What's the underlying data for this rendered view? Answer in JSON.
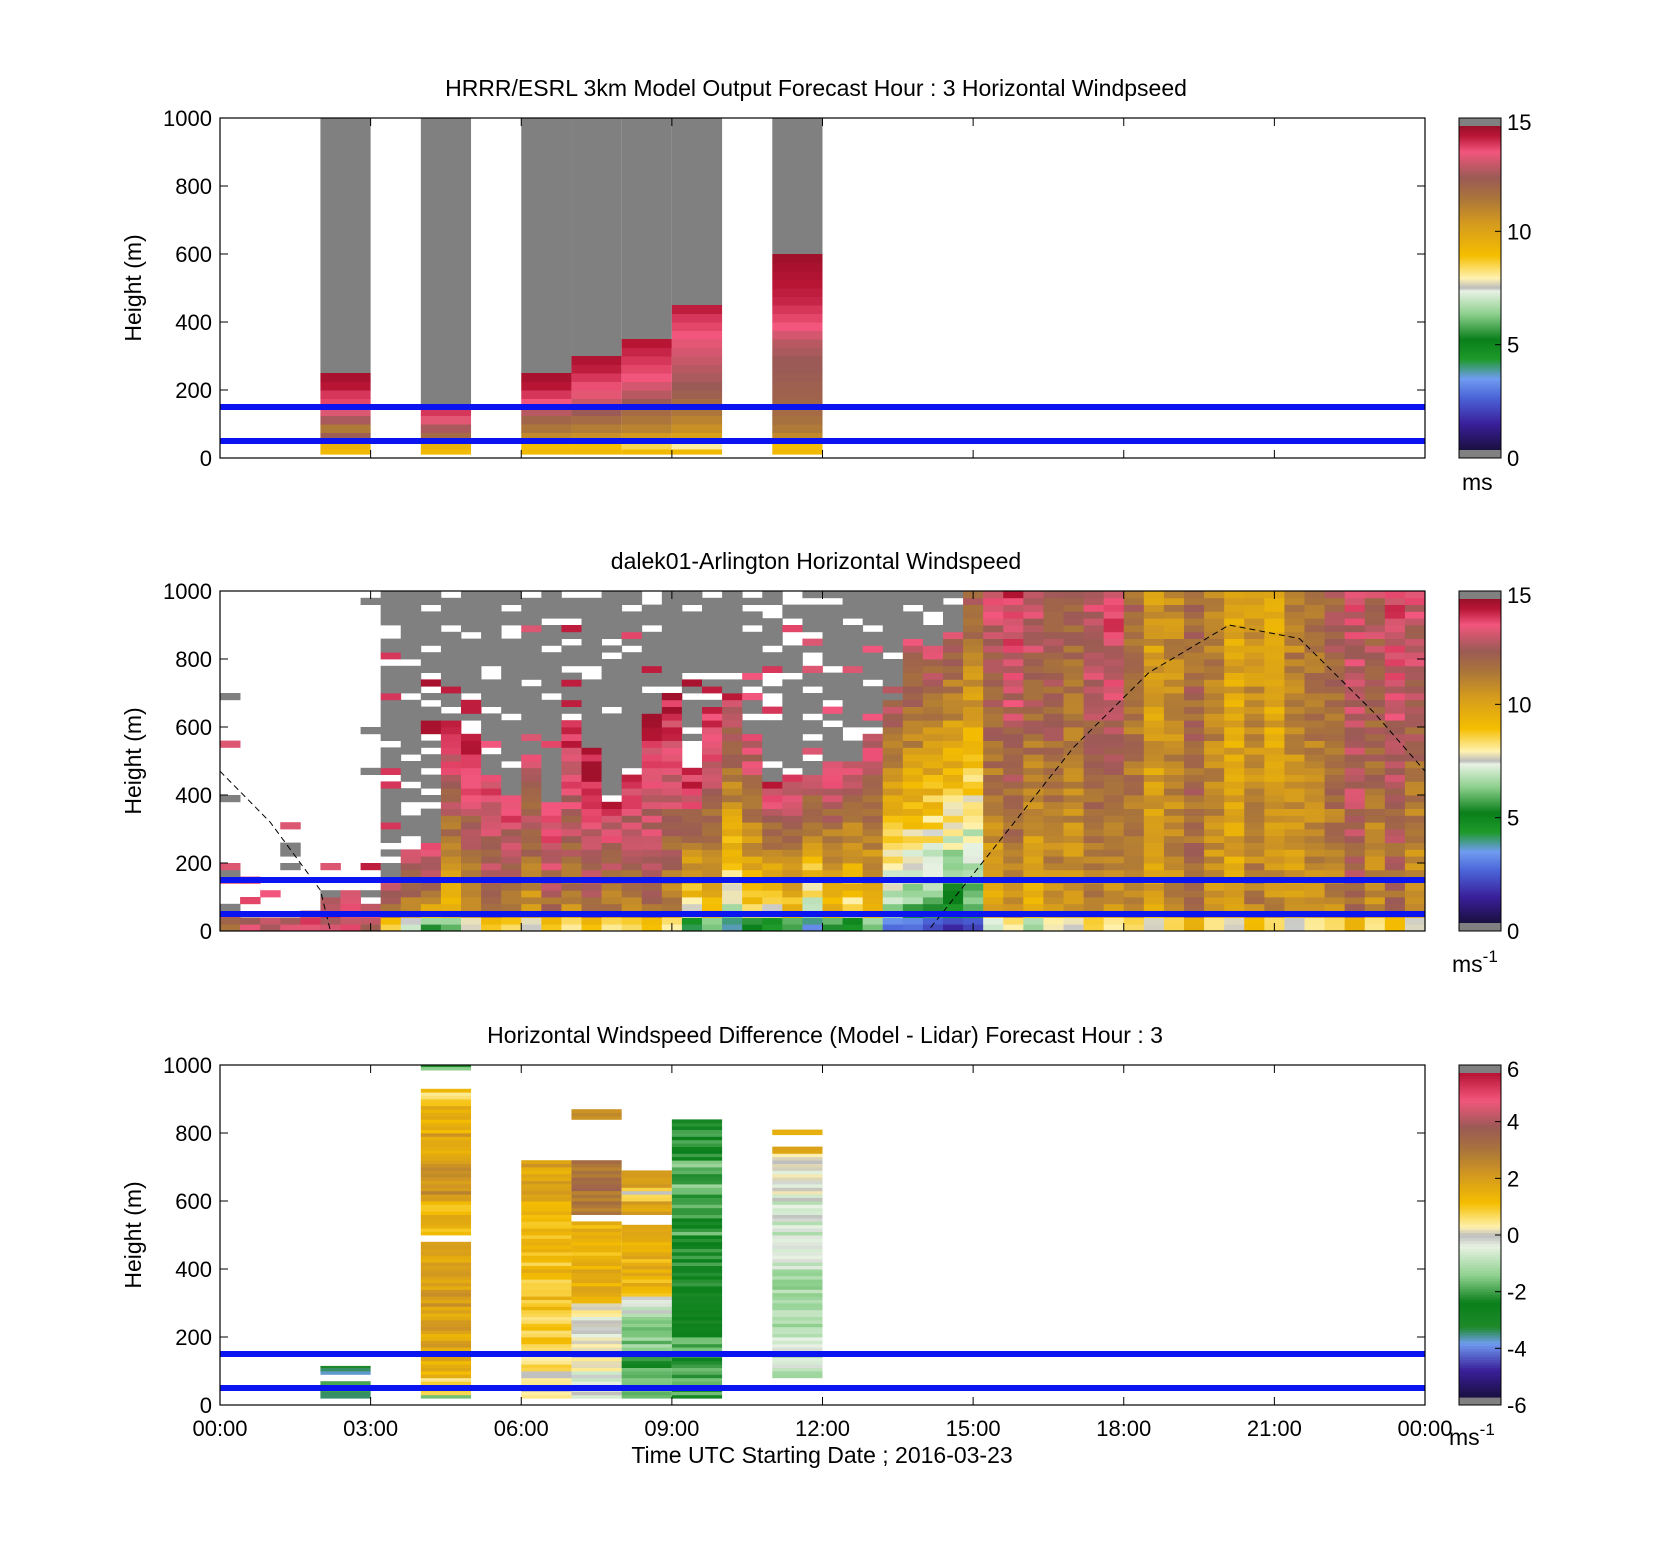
{
  "colors": {
    "threshold_line": "#0a14f0",
    "missing_data": "#808080",
    "terminator_line": "#000000"
  },
  "panels": [
    {
      "id": "model",
      "title": "HRRR/ESRL 3km Model Output   Forecast Hour : 3 Horizontal Windpseed",
      "ylabel": "Height (m)",
      "yticks": [
        "0",
        "200",
        "400",
        "600",
        "800",
        "1000"
      ],
      "xticks": [
        "00:00",
        "03:00",
        "06:00",
        "09:00",
        "12:00",
        "15:00",
        "18:00",
        "21:00",
        "00:00"
      ],
      "show_xticklabels": false,
      "colorbar": {
        "ticks": [
          "0",
          "5",
          "10",
          "15"
        ],
        "unit": "ms",
        "unit_sup": ""
      }
    },
    {
      "id": "lidar",
      "title": "dalek01-Arlington  Horizontal Windspeed",
      "ylabel": "Height (m)",
      "yticks": [
        "0",
        "200",
        "400",
        "600",
        "800",
        "1000"
      ],
      "xticks": [
        "00:00",
        "03:00",
        "06:00",
        "09:00",
        "12:00",
        "15:00",
        "18:00",
        "21:00",
        "00:00"
      ],
      "show_xticklabels": false,
      "colorbar": {
        "ticks": [
          "0",
          "5",
          "10",
          "15"
        ],
        "unit": "ms",
        "unit_sup": "-1"
      }
    },
    {
      "id": "difference",
      "title": "Horizontal Windspeed Difference (Model - Lidar) Forecast Hour : 3",
      "ylabel": "Height (m)",
      "yticks": [
        "0",
        "200",
        "400",
        "600",
        "800",
        "1000"
      ],
      "xticks": [
        "00:00",
        "03:00",
        "06:00",
        "09:00",
        "12:00",
        "15:00",
        "18:00",
        "21:00",
        "00:00"
      ],
      "show_xticklabels": true,
      "xlabel": "Time UTC  Starting Date ; 2016-03-23",
      "colorbar": {
        "ticks": [
          "-6",
          "-4",
          "-2",
          "0",
          "2",
          "4",
          "6"
        ],
        "unit": "ms",
        "unit_sup": "-1"
      }
    }
  ],
  "chart_data": [
    {
      "type": "heatmap",
      "title": "HRRR/ESRL 3km Model Output   Forecast Hour : 3 Horizontal Windpseed",
      "ylabel": "Height (m)",
      "xlim_hours": [
        0,
        24
      ],
      "ylim": [
        0,
        1000
      ],
      "clim": [
        0,
        15
      ],
      "colorbar_unit": "ms",
      "threshold_lines_m": [
        50,
        150
      ],
      "columns": [
        {
          "start_hour": 2,
          "end_hour": 3,
          "missing_above_m": 250,
          "profile": [
            [
              25,
              9.5
            ],
            [
              50,
              12.5
            ],
            [
              75,
              11.5
            ],
            [
              100,
              12.8
            ],
            [
              125,
              13.5
            ],
            [
              150,
              14.0
            ],
            [
              175,
              14.2
            ],
            [
              200,
              14.6
            ],
            [
              225,
              14.8
            ]
          ]
        },
        {
          "start_hour": 4,
          "end_hour": 5,
          "missing_above_m": 150,
          "profile": [
            [
              25,
              9.5
            ],
            [
              50,
              12.0
            ],
            [
              75,
              12.8
            ],
            [
              100,
              13.6
            ],
            [
              125,
              14.2
            ]
          ]
        },
        {
          "start_hour": 6,
          "end_hour": 7,
          "missing_above_m": 250,
          "profile": [
            [
              25,
              9.0
            ],
            [
              50,
              11.0
            ],
            [
              75,
              11.6
            ],
            [
              100,
              12.2
            ],
            [
              125,
              13.0
            ],
            [
              150,
              13.8
            ],
            [
              175,
              14.2
            ],
            [
              200,
              14.6
            ],
            [
              225,
              14.8
            ]
          ]
        },
        {
          "start_hour": 7,
          "end_hour": 8,
          "missing_above_m": 300,
          "profile": [
            [
              25,
              9.0
            ],
            [
              50,
              10.8
            ],
            [
              75,
              11.4
            ],
            [
              100,
              12.0
            ],
            [
              125,
              12.6
            ],
            [
              150,
              13.2
            ],
            [
              175,
              13.6
            ],
            [
              200,
              13.9
            ],
            [
              225,
              14.2
            ],
            [
              250,
              14.5
            ],
            [
              275,
              14.7
            ]
          ]
        },
        {
          "start_hour": 8,
          "end_hour": 9,
          "missing_above_m": 350,
          "profile": [
            [
              25,
              8.5
            ],
            [
              50,
              10.5
            ],
            [
              75,
              11.2
            ],
            [
              100,
              11.6
            ],
            [
              125,
              12.0
            ],
            [
              150,
              12.6
            ],
            [
              175,
              13.0
            ],
            [
              200,
              13.4
            ],
            [
              225,
              13.8
            ],
            [
              250,
              14.0
            ],
            [
              275,
              14.2
            ],
            [
              300,
              14.4
            ],
            [
              325,
              14.6
            ]
          ]
        },
        {
          "start_hour": 9,
          "end_hour": 10,
          "missing_above_m": 450,
          "profile": [
            [
              25,
              8.0
            ],
            [
              50,
              10.2
            ],
            [
              75,
              10.8
            ],
            [
              100,
              11.2
            ],
            [
              125,
              11.6
            ],
            [
              150,
              12.0
            ],
            [
              175,
              12.4
            ],
            [
              200,
              12.6
            ],
            [
              225,
              12.8
            ],
            [
              250,
              13.0
            ],
            [
              275,
              13.2
            ],
            [
              300,
              13.4
            ],
            [
              325,
              13.6
            ],
            [
              350,
              13.8
            ],
            [
              375,
              14.0
            ],
            [
              400,
              14.2
            ],
            [
              425,
              14.5
            ]
          ]
        },
        {
          "start_hour": 11,
          "end_hour": 12,
          "missing_above_m": 600,
          "profile": [
            [
              25,
              9.0
            ],
            [
              50,
              11.0
            ],
            [
              75,
              11.5
            ],
            [
              100,
              11.8
            ],
            [
              125,
              12.0
            ],
            [
              150,
              12.2
            ],
            [
              175,
              12.3
            ],
            [
              200,
              12.4
            ],
            [
              225,
              12.5
            ],
            [
              250,
              12.6
            ],
            [
              275,
              12.6
            ],
            [
              300,
              12.8
            ],
            [
              325,
              13.0
            ],
            [
              350,
              13.4
            ],
            [
              375,
              13.8
            ],
            [
              400,
              14.0
            ],
            [
              425,
              14.2
            ],
            [
              450,
              14.4
            ],
            [
              475,
              14.5
            ],
            [
              500,
              14.6
            ],
            [
              525,
              14.7
            ],
            [
              550,
              14.8
            ],
            [
              575,
              14.9
            ]
          ]
        }
      ]
    },
    {
      "type": "heatmap",
      "title": "dalek01-Arlington  Horizontal Windspeed",
      "ylabel": "Height (m)",
      "xlim_hours": [
        0,
        24
      ],
      "ylim": [
        0,
        1000
      ],
      "clim": [
        0,
        15
      ],
      "colorbar_unit": "ms-1",
      "threshold_lines_m": [
        50,
        150
      ],
      "time_bins_hours": [
        0,
        0.4,
        0.8,
        1.2,
        1.6,
        2.0,
        2.4,
        2.8,
        3.2,
        3.6,
        4.0,
        4.4,
        4.8,
        5.2,
        5.6,
        6.0,
        6.4,
        6.8,
        7.2,
        7.6,
        8.0,
        8.4,
        8.8,
        9.2,
        9.6,
        10.0,
        10.4,
        10.8,
        11.2,
        11.6,
        12.0,
        12.4,
        12.8,
        13.2,
        13.6,
        14.0,
        14.4,
        14.8,
        15.2,
        15.6,
        16.0,
        16.4,
        16.8,
        17.2,
        17.6,
        18.0,
        18.4,
        18.8,
        19.2,
        19.6,
        20.0,
        20.4,
        20.8,
        21.2,
        21.6,
        22.0,
        22.4,
        22.8,
        23.2,
        23.6
      ],
      "data_top_m": [
        750,
        420,
        420,
        340,
        260,
        240,
        220,
        1000,
        1000,
        1000,
        1000,
        1000,
        1000,
        1000,
        1000,
        1000,
        1000,
        1000,
        1000,
        1000,
        1000,
        1000,
        1000,
        1000,
        1000,
        1000,
        1000,
        1000,
        1000,
        1000,
        1000,
        1000,
        1000,
        1000,
        1000,
        1000,
        1000,
        1000,
        1000,
        1000,
        1000,
        1000,
        1000,
        1000,
        1000,
        1000,
        1000,
        1000,
        1000,
        1000,
        1000,
        1000,
        1000,
        1000,
        1000,
        1000,
        1000,
        1000,
        1000,
        1000
      ],
      "missing_above_m": [
        60,
        40,
        30,
        40,
        50,
        90,
        120,
        70,
        160,
        230,
        260,
        600,
        580,
        460,
        400,
        520,
        380,
        620,
        520,
        380,
        450,
        640,
        700,
        470,
        650,
        690,
        570,
        430,
        460,
        460,
        490,
        500,
        580,
        670,
        850,
        840,
        880,
        1000,
        1000,
        1000,
        1000,
        1000,
        1000,
        1000,
        1000,
        1000,
        1000,
        1000,
        1000,
        1000,
        1000,
        1000,
        1000,
        1000,
        1000,
        1000,
        1000,
        1000,
        1000,
        1000
      ],
      "surface_speed_ms": [
        12.5,
        13.0,
        13.5,
        13.5,
        13.8,
        13.5,
        13.8,
        13.0,
        11.0,
        9.5,
        8.0,
        8.5,
        10.0,
        11.5,
        11.0,
        10.0,
        11.5,
        10.5,
        11.5,
        10.5,
        11.0,
        11.5,
        10.5,
        6.5,
        8.5,
        6.0,
        7.5,
        6.5,
        8.0,
        5.5,
        8.0,
        7.0,
        8.5,
        5.0,
        5.0,
        4.5,
        4.0,
        4.5,
        9.5,
        10.5,
        9.0,
        10.5,
        10.0,
        11.0,
        10.5,
        11.0,
        10.0,
        11.0,
        12.0,
        10.5,
        10.0,
        11.5,
        11.0,
        10.0,
        10.5,
        11.0,
        12.0,
        10.5,
        11.5,
        10.0
      ],
      "upper_speed_ms": [
        13.5,
        14.0,
        13.8,
        13.5,
        13.5,
        13.5,
        13.8,
        14.5,
        14.2,
        14.0,
        14.8,
        14.5,
        14.5,
        13.8,
        14.0,
        13.5,
        14.0,
        14.5,
        14.8,
        14.2,
        14.0,
        14.5,
        14.5,
        14.8,
        14.5,
        14.0,
        13.8,
        14.2,
        14.0,
        13.5,
        13.8,
        13.5,
        13.8,
        13.0,
        13.5,
        13.2,
        13.0,
        12.5,
        13.5,
        14.0,
        13.5,
        13.0,
        12.5,
        13.5,
        14.0,
        12.0,
        10.5,
        11.0,
        12.0,
        11.5,
        10.0,
        10.5,
        9.5,
        11.5,
        12.0,
        12.5,
        13.5,
        13.0,
        14.0,
        13.5
      ],
      "terminator_curve": {
        "description": "dashed black curve",
        "points_hours_m": [
          [
            0,
            470
          ],
          [
            1,
            320
          ],
          [
            2,
            120
          ],
          [
            2.2,
            0
          ],
          [
            14.1,
            0
          ],
          [
            15.5,
            260
          ],
          [
            17,
            540
          ],
          [
            18.5,
            760
          ],
          [
            20.1,
            900
          ],
          [
            21.5,
            860
          ],
          [
            23,
            640
          ],
          [
            24,
            470
          ]
        ]
      }
    },
    {
      "type": "heatmap",
      "title": "Horizontal Windspeed Difference (Model - Lidar) Forecast Hour : 3",
      "xlabel": "Time UTC  Starting Date ; 2016-03-23",
      "ylabel": "Height (m)",
      "xlim_hours": [
        0,
        24
      ],
      "ylim": [
        0,
        1000
      ],
      "clim": [
        -6,
        6
      ],
      "colorbar_unit": "ms-1",
      "threshold_lines_m": [
        50,
        150
      ],
      "columns": [
        {
          "start_hour": 2,
          "end_hour": 3,
          "segments": [
            [
              20,
              40,
              -3.5
            ],
            [
              40,
              70,
              -2.5
            ],
            [
              90,
              115,
              -3.5
            ]
          ]
        },
        {
          "start_hour": 4,
          "end_hour": 5,
          "segments": [
            [
              20,
              30,
              -1.5
            ],
            [
              30,
              80,
              0.5
            ],
            [
              80,
              150,
              1.5
            ],
            [
              150,
              300,
              2.0
            ],
            [
              300,
              480,
              2.0
            ],
            [
              500,
              600,
              1.5
            ],
            [
              600,
              700,
              2.5
            ],
            [
              700,
              800,
              2.0
            ],
            [
              800,
              900,
              1.5
            ],
            [
              900,
              930,
              1.0
            ],
            [
              985,
              1000,
              -2.0
            ]
          ]
        },
        {
          "start_hour": 6,
          "end_hour": 7,
          "segments": [
            [
              20,
              100,
              0.0
            ],
            [
              100,
              180,
              0.5
            ],
            [
              180,
              300,
              1.0
            ],
            [
              300,
              450,
              1.2
            ],
            [
              450,
              600,
              1.5
            ],
            [
              600,
              720,
              2.0
            ]
          ]
        },
        {
          "start_hour": 7,
          "end_hour": 8,
          "segments": [
            [
              20,
              100,
              -0.5
            ],
            [
              100,
              300,
              0.0
            ],
            [
              300,
              540,
              1.5
            ],
            [
              560,
              720,
              3.2
            ],
            [
              840,
              870,
              2.5
            ]
          ]
        },
        {
          "start_hour": 8,
          "end_hour": 9,
          "segments": [
            [
              20,
              150,
              -2.0
            ],
            [
              150,
              260,
              -1.5
            ],
            [
              260,
              320,
              -0.5
            ],
            [
              320,
              530,
              1.5
            ],
            [
              560,
              600,
              2.0
            ],
            [
              600,
              640,
              0.5
            ],
            [
              640,
              690,
              2.0
            ]
          ]
        },
        {
          "start_hour": 9,
          "end_hour": 10,
          "segments": [
            [
              20,
              200,
              -2.2
            ],
            [
              200,
              300,
              -2.8
            ],
            [
              300,
              500,
              -2.5
            ],
            [
              500,
              620,
              -2.0
            ],
            [
              620,
              720,
              -1.8
            ],
            [
              720,
              840,
              -2.5
            ]
          ]
        },
        {
          "start_hour": 11,
          "end_hour": 12,
          "segments": [
            [
              80,
              200,
              -0.8
            ],
            [
              200,
              400,
              -1.2
            ],
            [
              400,
              600,
              -0.6
            ],
            [
              600,
              720,
              -0.2
            ],
            [
              720,
              740,
              0.5
            ],
            [
              740,
              760,
              1.5
            ],
            [
              795,
              810,
              2.0
            ]
          ]
        }
      ]
    }
  ]
}
